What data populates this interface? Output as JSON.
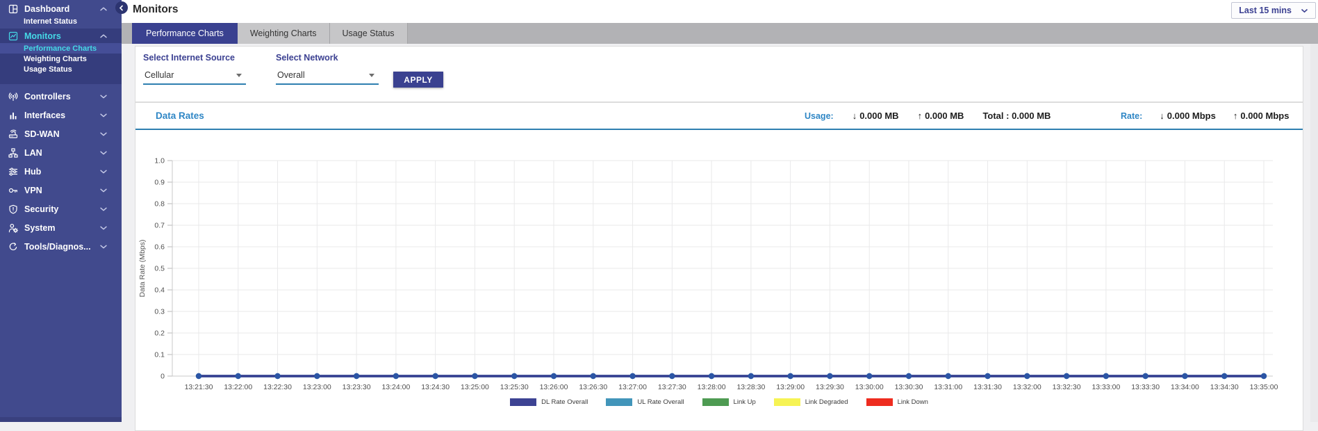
{
  "header": {
    "title": "Monitors",
    "time_range": {
      "value": "Last 15 mins"
    }
  },
  "tabs": [
    {
      "label": "Performance Charts",
      "active": true
    },
    {
      "label": "Weighting Charts",
      "active": false
    },
    {
      "label": "Usage Status",
      "active": false
    }
  ],
  "sidebar": {
    "items": [
      {
        "id": "dashboard",
        "label": "Dashboard",
        "icon": "dashboard-icon",
        "chevron": "up",
        "active": false,
        "highlight_section": false,
        "children": [
          {
            "label": "Internet Status",
            "active": false
          }
        ]
      },
      {
        "id": "monitors",
        "label": "Monitors",
        "icon": "monitors-icon",
        "chevron": "up",
        "active": true,
        "highlight_section": true,
        "children": [
          {
            "label": "Performance Charts",
            "active": true
          },
          {
            "label": "Weighting Charts",
            "active": false
          },
          {
            "label": "Usage Status",
            "active": false
          }
        ]
      },
      {
        "id": "controllers",
        "label": "Controllers",
        "icon": "controllers-icon",
        "chevron": "down",
        "active": false
      },
      {
        "id": "interfaces",
        "label": "Interfaces",
        "icon": "interfaces-icon",
        "chevron": "down",
        "active": false
      },
      {
        "id": "sd-wan",
        "label": "SD-WAN",
        "icon": "sdwan-icon",
        "chevron": "down",
        "active": false
      },
      {
        "id": "lan",
        "label": "LAN",
        "icon": "lan-icon",
        "chevron": "down",
        "active": false
      },
      {
        "id": "hub",
        "label": "Hub",
        "icon": "hub-icon",
        "chevron": "down",
        "active": false
      },
      {
        "id": "vpn",
        "label": "VPN",
        "icon": "vpn-icon",
        "chevron": "down",
        "active": false
      },
      {
        "id": "security",
        "label": "Security",
        "icon": "security-icon",
        "chevron": "down",
        "active": false
      },
      {
        "id": "system",
        "label": "System",
        "icon": "system-icon",
        "chevron": "down",
        "active": false
      },
      {
        "id": "tools-diagnostics",
        "label": "Tools/Diagnos...",
        "icon": "tools-icon",
        "chevron": "down",
        "active": false
      }
    ]
  },
  "filters": {
    "internet_source": {
      "label": "Select Internet Source",
      "value": "Cellular"
    },
    "network": {
      "label": "Select Network",
      "value": "Overall"
    },
    "apply_label": "APPLY"
  },
  "panel": {
    "title": "Data Rates",
    "usage": {
      "label": "Usage:",
      "down_value": "0.000 MB",
      "up_value": "0.000 MB",
      "total": "Total : 0.000 MB"
    },
    "rate": {
      "label": "Rate:",
      "down_value": "0.000 Mbps",
      "up_value": "0.000 Mbps"
    }
  },
  "icons": {
    "down_arrow": "↓",
    "up_arrow": "↑"
  },
  "colors": {
    "sidebar_bg": "#414a8d",
    "sidebar_section_bg": "#353d7d",
    "accent_indigo": "#3a4190",
    "accent_cyan": "#45d9e6",
    "link_blue": "#2e86c5",
    "divider_blue": "#2e7fb0"
  },
  "chart_data": {
    "type": "line",
    "title": "Data Rates",
    "xlabel": "",
    "ylabel": "Data Rate (Mbps)",
    "ylim": [
      0,
      1.0
    ],
    "grid": true,
    "grid_color": "#e9e9ea",
    "legend_position": "bottom",
    "yticks": [
      {
        "value": 0,
        "label": "0"
      },
      {
        "value": 0.1,
        "label": "0.1"
      },
      {
        "value": 0.2,
        "label": "0.2"
      },
      {
        "value": 0.3,
        "label": "0.3"
      },
      {
        "value": 0.4,
        "label": "0.4"
      },
      {
        "value": 0.5,
        "label": "0.5"
      },
      {
        "value": 0.6,
        "label": "0.6"
      },
      {
        "value": 0.7,
        "label": "0.7"
      },
      {
        "value": 0.8,
        "label": "0.8"
      },
      {
        "value": 0.9,
        "label": "0.9"
      },
      {
        "value": 1.0,
        "label": "1.0"
      }
    ],
    "x": [
      "13:21:30",
      "13:22:00",
      "13:22:30",
      "13:23:00",
      "13:23:30",
      "13:24:00",
      "13:24:30",
      "13:25:00",
      "13:25:30",
      "13:26:00",
      "13:26:30",
      "13:27:00",
      "13:27:30",
      "13:28:00",
      "13:28:30",
      "13:29:00",
      "13:29:30",
      "13:30:00",
      "13:30:30",
      "13:31:00",
      "13:31:30",
      "13:32:00",
      "13:32:30",
      "13:33:00",
      "13:33:30",
      "13:34:00",
      "13:34:30",
      "13:35:00"
    ],
    "series": [
      {
        "name": "DL Rate Overall",
        "color": "#353e90",
        "marker_color": "#2b55a5",
        "values": [
          0,
          0,
          0,
          0,
          0,
          0,
          0,
          0,
          0,
          0,
          0,
          0,
          0,
          0,
          0,
          0,
          0,
          0,
          0,
          0,
          0,
          0,
          0,
          0,
          0,
          0,
          0,
          0
        ]
      },
      {
        "name": "UL Rate Overall",
        "color": "#4295ba",
        "marker_color": "#2e7fa8",
        "values": [
          0,
          0,
          0,
          0,
          0,
          0,
          0,
          0,
          0,
          0,
          0,
          0,
          0,
          0,
          0,
          0,
          0,
          0,
          0,
          0,
          0,
          0,
          0,
          0,
          0,
          0,
          0,
          0
        ]
      }
    ],
    "legend": [
      {
        "label": "DL Rate Overall",
        "color": "#3d4393"
      },
      {
        "label": "UL Rate Overall",
        "color": "#4295ba"
      },
      {
        "label": "Link Up",
        "color": "#4e9b52"
      },
      {
        "label": "Link Degraded",
        "color": "#f6f354"
      },
      {
        "label": "Link Down",
        "color": "#ee2c1f"
      }
    ]
  }
}
